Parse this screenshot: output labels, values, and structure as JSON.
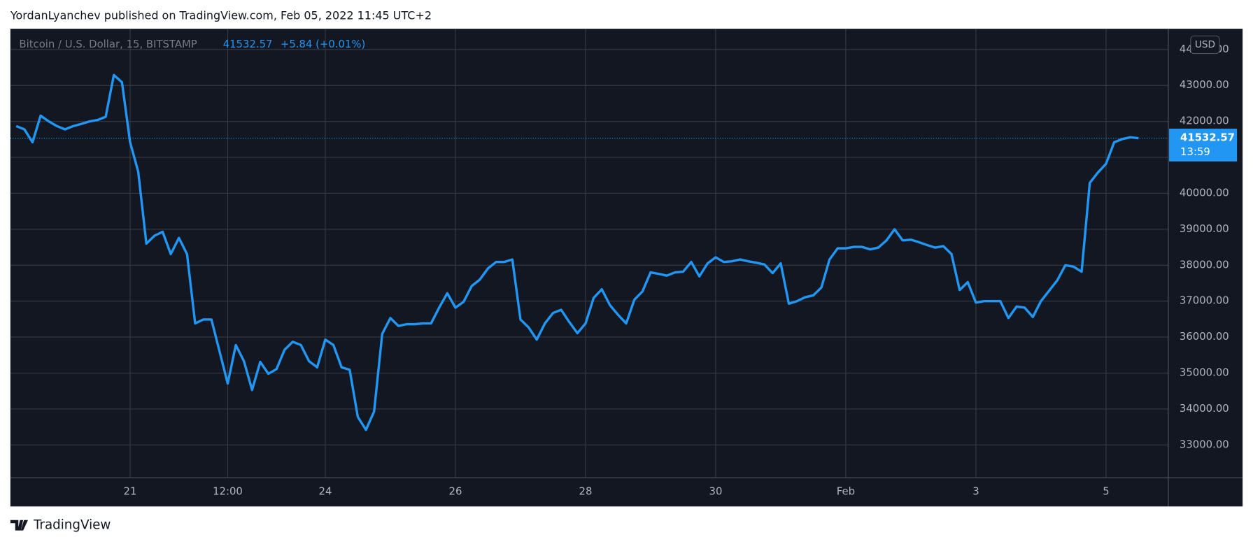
{
  "header": "YordanLyanchev published on TradingView.com, Feb 05, 2022 11:45 UTC+2",
  "footer": "TradingView",
  "chart_data": {
    "type": "line",
    "title": "Bitcoin / U.S. Dollar, 15, BITSTAMP",
    "change": "+5.84 (+0.01%)",
    "currency": "USD",
    "countdown": "13:59",
    "color": "#2196f3",
    "grid": true,
    "xlim": [
      19.16,
      36.957
    ],
    "xticks": [
      21,
      {
        "value": 22.5,
        "label": "12:00"
      },
      24,
      26,
      28,
      30,
      {
        "value": 32,
        "label": "Feb"
      },
      {
        "value": 34,
        "label": "3"
      },
      {
        "value": 36,
        "label": "5"
      }
    ],
    "ylim": [
      32089,
      44578
    ],
    "yticks": [
      {
        "value": 33000,
        "label": "33000.00"
      },
      {
        "value": 34000,
        "label": "34000.00"
      },
      {
        "value": 35000,
        "label": "35000.00"
      },
      {
        "value": 36000,
        "label": "36000.00"
      },
      {
        "value": 37000,
        "label": "37000.00"
      },
      {
        "value": 38000,
        "label": "38000.00"
      },
      {
        "value": 39000,
        "label": "39000.00"
      },
      {
        "value": 40000,
        "label": "40000.00"
      },
      {
        "value": 41000,
        "label": "41000.00"
      },
      {
        "value": 42000,
        "label": "42000.00"
      },
      {
        "value": 43000,
        "label": "43000.00"
      },
      {
        "value": 44000,
        "label": "44000.00"
      }
    ],
    "x": [
      19.25,
      19.375,
      19.5,
      19.625,
      19.75,
      19.875,
      20,
      20.125,
      20.25,
      20.375,
      20.5,
      20.625,
      20.75,
      20.875,
      21,
      21.125,
      21.25,
      21.375,
      21.5,
      21.625,
      21.75,
      21.875,
      22,
      22.125,
      22.25,
      22.375,
      22.5,
      22.625,
      22.75,
      22.875,
      23,
      23.125,
      23.25,
      23.375,
      23.5,
      23.625,
      23.75,
      23.875,
      24,
      24.125,
      24.25,
      24.375,
      24.5,
      24.625,
      24.75,
      24.875,
      25,
      25.125,
      25.25,
      25.375,
      25.5,
      25.625,
      25.75,
      25.875,
      26,
      26.125,
      26.25,
      26.375,
      26.5,
      26.625,
      26.75,
      26.875,
      27,
      27.125,
      27.25,
      27.375,
      27.5,
      27.625,
      27.75,
      27.875,
      28,
      28.125,
      28.25,
      28.375,
      28.5,
      28.625,
      28.75,
      28.875,
      29,
      29.125,
      29.25,
      29.375,
      29.5,
      29.625,
      29.75,
      29.875,
      30,
      30.125,
      30.25,
      30.375,
      30.5,
      30.625,
      30.75,
      30.875,
      31,
      31.125,
      31.25,
      31.375,
      31.5,
      31.625,
      31.75,
      31.875,
      32,
      32.125,
      32.25,
      32.375,
      32.5,
      32.625,
      32.75,
      32.875,
      33,
      33.125,
      33.25,
      33.375,
      33.5,
      33.625,
      33.75,
      33.875,
      34,
      34.125,
      34.25,
      34.375,
      34.5,
      34.625,
      34.75,
      34.875,
      35,
      35.125,
      35.25,
      35.375,
      35.5,
      35.625,
      35.75,
      35.875,
      36,
      36.125,
      36.25,
      36.375,
      36.5
    ],
    "values": [
      41870,
      41780,
      41420,
      42160,
      42000,
      41870,
      41780,
      41870,
      41930,
      42000,
      42040,
      42130,
      43290,
      43090,
      41420,
      40600,
      38600,
      38820,
      38930,
      38310,
      38760,
      38310,
      36380,
      36490,
      36490,
      35600,
      34710,
      35780,
      35330,
      34530,
      35310,
      34980,
      35110,
      35650,
      35870,
      35780,
      35330,
      35160,
      35930,
      35780,
      35160,
      35090,
      33780,
      33420,
      33930,
      36090,
      36530,
      36310,
      36360,
      36360,
      36380,
      36380,
      36820,
      37220,
      36820,
      36980,
      37420,
      37600,
      37910,
      38090,
      38090,
      38160,
      36490,
      36270,
      35930,
      36380,
      36670,
      36760,
      36420,
      36110,
      36380,
      37090,
      37330,
      36890,
      36620,
      36380,
      37040,
      37270,
      37800,
      37760,
      37710,
      37800,
      37820,
      38090,
      37690,
      38050,
      38220,
      38090,
      38110,
      38160,
      38110,
      38070,
      38020,
      37780,
      38050,
      36930,
      37000,
      37110,
      37160,
      37380,
      38160,
      38470,
      38470,
      38510,
      38510,
      38440,
      38490,
      38690,
      39000,
      38690,
      38710,
      38640,
      38560,
      38490,
      38530,
      38310,
      37310,
      37530,
      36960,
      37000,
      37000,
      37000,
      36530,
      36850,
      36820,
      36560,
      37000,
      37290,
      37580,
      38000,
      37960,
      37820,
      40290,
      40580,
      40820,
      41420,
      41510,
      41560,
      41532.57
    ]
  }
}
